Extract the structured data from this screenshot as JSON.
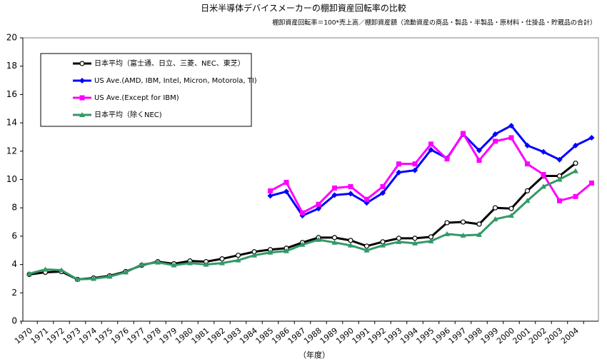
{
  "chart_data": {
    "type": "line",
    "title": "日米半導体デバイスメーカーの棚卸資産回転率の比較",
    "subtitle": "棚卸資産回転率＝100*売上高／棚卸資産額（流動資産の商品・製品・半製品・原材料・仕掛品・貯蔵品の合計）",
    "x_label": "（年度）",
    "categories": [
      "1970",
      "1971",
      "1972",
      "1973",
      "1974",
      "1975",
      "1976",
      "1977",
      "1978",
      "1979",
      "1980",
      "1981",
      "1982",
      "1983",
      "1984",
      "1985",
      "1986",
      "1987",
      "1988",
      "1989",
      "1990",
      "1991",
      "1992",
      "1993",
      "1994",
      "1995",
      "1996",
      "1997",
      "1998",
      "1999",
      "2000",
      "2001",
      "2002",
      "2003",
      "2004",
      null
    ],
    "ylim": [
      0,
      20
    ],
    "yticks": [
      0,
      2,
      4,
      6,
      8,
      10,
      12,
      14,
      16,
      18,
      20
    ],
    "series": [
      {
        "name": "日本平均（富士通、日立、三菱、NEC、東芝）",
        "color": "#000000",
        "marker": "circle",
        "values": [
          3.3,
          3.45,
          3.5,
          2.95,
          3.05,
          3.2,
          3.5,
          3.95,
          4.2,
          4.05,
          4.25,
          4.2,
          4.4,
          4.65,
          4.9,
          5.05,
          5.15,
          5.55,
          5.9,
          5.9,
          5.7,
          5.3,
          5.6,
          5.85,
          5.85,
          5.95,
          6.95,
          7.0,
          6.85,
          8.0,
          7.95,
          9.2,
          10.25,
          10.25,
          11.15,
          null
        ]
      },
      {
        "name": "US Ave.(AMD, IBM, Intel, Micron, Motorola, TI)",
        "color": "#0000ff",
        "marker": "diamond",
        "values": [
          null,
          null,
          null,
          null,
          null,
          null,
          null,
          null,
          null,
          null,
          null,
          null,
          null,
          null,
          null,
          8.85,
          9.15,
          7.45,
          7.95,
          8.9,
          9.0,
          8.35,
          9.05,
          10.5,
          10.65,
          12.1,
          11.5,
          13.2,
          12.05,
          13.2,
          13.8,
          12.4,
          11.95,
          11.4,
          12.4,
          12.95
        ]
      },
      {
        "name": "US Ave.(Except for IBM)",
        "color": "#ff00ff",
        "marker": "square",
        "values": [
          null,
          null,
          null,
          null,
          null,
          null,
          null,
          null,
          null,
          null,
          null,
          null,
          null,
          null,
          null,
          9.2,
          9.8,
          7.65,
          8.25,
          9.4,
          9.5,
          8.6,
          9.5,
          11.1,
          11.1,
          12.5,
          11.45,
          13.25,
          11.35,
          12.7,
          12.95,
          11.1,
          10.35,
          8.5,
          8.8,
          9.75
        ]
      },
      {
        "name": "日本平均（除くNEC)",
        "color": "#339966",
        "marker": "triangle",
        "values": [
          3.35,
          3.65,
          3.6,
          2.95,
          3.0,
          3.15,
          3.45,
          4.0,
          4.15,
          3.95,
          4.1,
          4.0,
          4.1,
          4.3,
          4.65,
          4.85,
          4.95,
          5.4,
          5.75,
          5.55,
          5.35,
          5.0,
          5.35,
          5.6,
          5.5,
          5.65,
          6.15,
          6.05,
          6.1,
          7.2,
          7.45,
          8.5,
          9.5,
          10.0,
          10.6,
          null
        ]
      }
    ]
  }
}
